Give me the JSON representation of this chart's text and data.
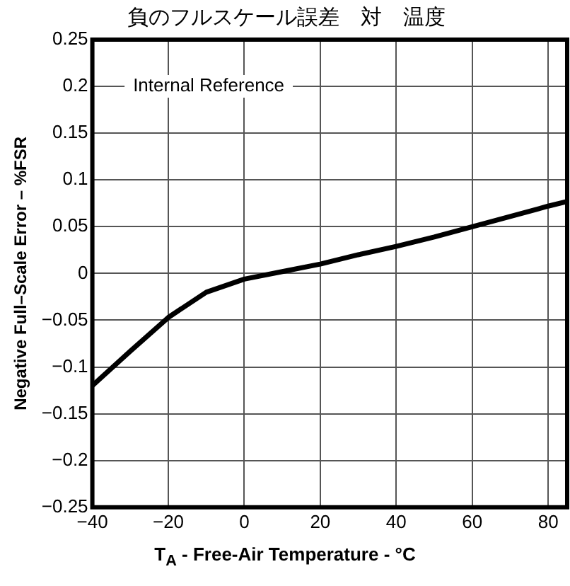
{
  "chart_data": {
    "type": "line",
    "title": "負のフルスケール誤差　対　温度",
    "xlabel": "T$_{A}$ - Free-Air Temperature - °C",
    "ylabel": "Negative Full–Scale Error – %FSR",
    "x": [
      -40,
      -30,
      -20,
      -10,
      0,
      10,
      20,
      30,
      40,
      50,
      60,
      70,
      80,
      85
    ],
    "series": [
      {
        "color": "#000000",
        "values": [
          -0.12,
          -0.083,
          -0.047,
          -0.02,
          -0.006,
          0.002,
          0.01,
          0.02,
          0.029,
          0.039,
          0.05,
          0.061,
          0.072,
          0.077
        ]
      }
    ],
    "xlim": [
      -40,
      85
    ],
    "xticks": [
      {
        "value": -40,
        "label": "−40"
      },
      {
        "value": -20,
        "label": "−20"
      },
      0,
      20,
      40,
      60,
      80
    ],
    "ylim": [
      -0.25,
      0.25
    ],
    "yticks": [
      {
        "value": -0.25,
        "label": "−0.25"
      },
      {
        "value": -0.2,
        "label": "−0.2"
      },
      {
        "value": -0.15,
        "label": "−0.15"
      },
      {
        "value": -0.1,
        "label": "−0.1"
      },
      {
        "value": -0.05,
        "label": "−0.05"
      },
      0,
      0.05,
      0.1,
      0.15,
      0.2,
      0.25
    ],
    "annotations": [
      "Internal Reference"
    ],
    "grid": true,
    "legend": false,
    "marker": "none",
    "line_style": "solid"
  }
}
